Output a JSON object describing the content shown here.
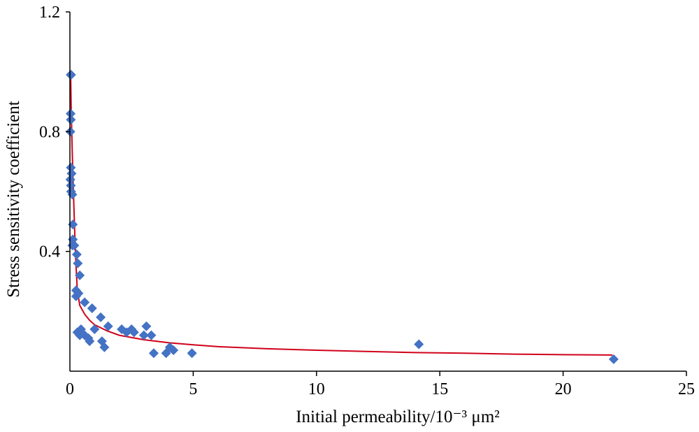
{
  "chart_data": {
    "type": "scatter",
    "xlabel": "Initial permeability/10⁻³ μm²",
    "ylabel": "Stress sensitivity coefficient",
    "xlim": [
      0,
      25
    ],
    "ylim": [
      0,
      1.2
    ],
    "xticks": [
      "0",
      "5",
      "10",
      "15",
      "20",
      "25"
    ],
    "yticks": [
      {
        "value": 0.4,
        "label": "0.4"
      },
      {
        "value": 0.8,
        "label": "0.8"
      },
      {
        "value": 1.2,
        "label": "1.2"
      }
    ],
    "grid": false,
    "legend": "none",
    "colors": {
      "markers": "#4472C4",
      "fit": "#D0021B",
      "axes": "#000000"
    },
    "series": [
      {
        "kind": "scatter",
        "marker": "diamond",
        "points": [
          [
            0.03,
            0.99
          ],
          [
            0.05,
            0.99
          ],
          [
            0.03,
            0.86
          ],
          [
            0.04,
            0.84
          ],
          [
            0.02,
            0.8
          ],
          [
            0.04,
            0.68
          ],
          [
            0.07,
            0.66
          ],
          [
            0.02,
            0.64
          ],
          [
            0.04,
            0.62
          ],
          [
            0.05,
            0.6
          ],
          [
            0.1,
            0.59
          ],
          [
            0.12,
            0.49
          ],
          [
            0.12,
            0.44
          ],
          [
            0.1,
            0.42
          ],
          [
            0.18,
            0.42
          ],
          [
            0.28,
            0.39
          ],
          [
            0.32,
            0.36
          ],
          [
            0.4,
            0.32
          ],
          [
            0.25,
            0.27
          ],
          [
            0.35,
            0.26
          ],
          [
            0.25,
            0.25
          ],
          [
            0.6,
            0.23
          ],
          [
            0.9,
            0.21
          ],
          [
            1.25,
            0.18
          ],
          [
            1.55,
            0.15
          ],
          [
            0.45,
            0.14
          ],
          [
            0.3,
            0.13
          ],
          [
            0.4,
            0.12
          ],
          [
            0.6,
            0.12
          ],
          [
            0.75,
            0.11
          ],
          [
            0.8,
            0.1
          ],
          [
            1.0,
            0.14
          ],
          [
            1.3,
            0.1
          ],
          [
            1.4,
            0.08
          ],
          [
            2.1,
            0.14
          ],
          [
            2.3,
            0.13
          ],
          [
            2.5,
            0.14
          ],
          [
            2.6,
            0.13
          ],
          [
            3.0,
            0.12
          ],
          [
            3.1,
            0.15
          ],
          [
            3.3,
            0.12
          ],
          [
            3.4,
            0.06
          ],
          [
            3.9,
            0.06
          ],
          [
            4.05,
            0.08
          ],
          [
            4.2,
            0.07
          ],
          [
            4.95,
            0.06
          ],
          [
            14.15,
            0.09
          ],
          [
            22.05,
            0.04
          ]
        ]
      },
      {
        "kind": "line",
        "points": [
          [
            0.03,
            0.99
          ],
          [
            0.05,
            0.88
          ],
          [
            0.1,
            0.72
          ],
          [
            0.15,
            0.58
          ],
          [
            0.2,
            0.45
          ],
          [
            0.25,
            0.35
          ],
          [
            0.3,
            0.27
          ],
          [
            0.4,
            0.22
          ],
          [
            0.6,
            0.19
          ],
          [
            0.8,
            0.17
          ],
          [
            1.0,
            0.155
          ],
          [
            1.5,
            0.135
          ],
          [
            2.0,
            0.12
          ],
          [
            3.0,
            0.105
          ],
          [
            4.0,
            0.095
          ],
          [
            5.0,
            0.088
          ],
          [
            6.0,
            0.082
          ],
          [
            8.0,
            0.075
          ],
          [
            10.0,
            0.07
          ],
          [
            12.0,
            0.066
          ],
          [
            14.0,
            0.062
          ],
          [
            16.0,
            0.06
          ],
          [
            18.0,
            0.057
          ],
          [
            20.0,
            0.055
          ],
          [
            22.0,
            0.054
          ]
        ]
      }
    ]
  }
}
